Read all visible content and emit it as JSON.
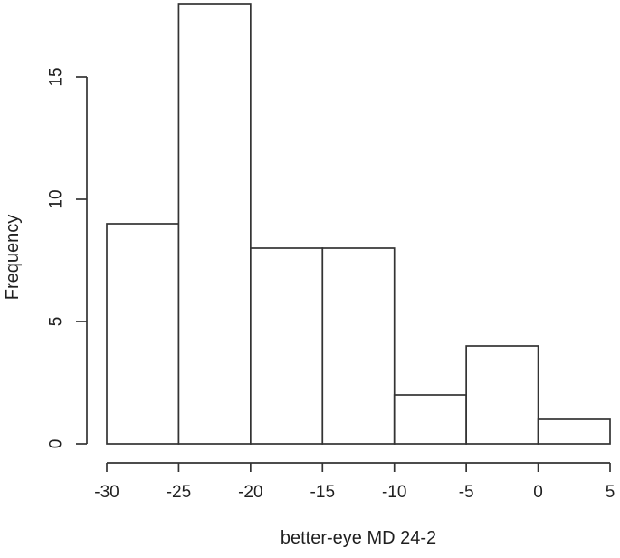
{
  "chart_data": {
    "type": "bar",
    "variant": "histogram",
    "xlabel": "better-eye MD 24-2",
    "ylabel": "Frequency",
    "bin_breaks": [
      -30,
      -25,
      -20,
      -15,
      -10,
      -5,
      0,
      5
    ],
    "counts": [
      9,
      18,
      8,
      8,
      2,
      4,
      1
    ],
    "x_ticks": [
      "-30",
      "-25",
      "-20",
      "-15",
      "-10",
      "-5",
      "0",
      "5"
    ],
    "x_tick_values": [
      -30,
      -25,
      -20,
      -15,
      -10,
      -5,
      0,
      5
    ],
    "y_ticks": [
      "0",
      "5",
      "10",
      "15"
    ],
    "y_tick_values": [
      0,
      5,
      10,
      15
    ],
    "xlim": [
      -30,
      5
    ],
    "ylim": [
      0,
      18
    ],
    "grid": false,
    "legend": "none",
    "bar_fill": "#ffffff",
    "line_color": "#333333",
    "text_color": "#1f1f1f",
    "background": "#ffffff"
  }
}
